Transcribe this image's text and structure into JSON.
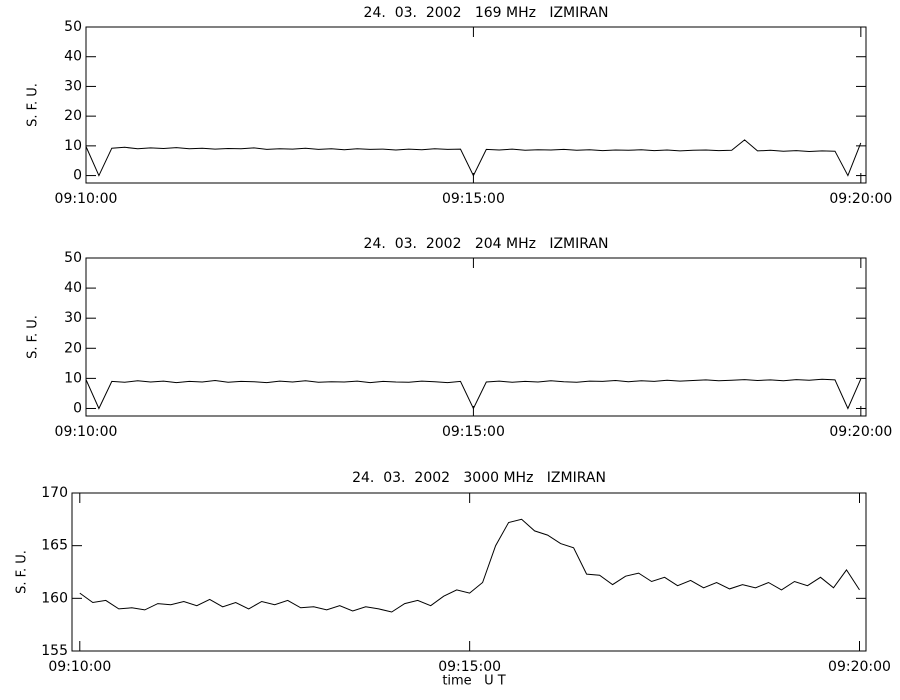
{
  "chart_data": [
    {
      "type": "line",
      "title": "24.  03.  2002   169 MHz   IZMIRAN",
      "ylabel": "S. F. U.",
      "color": "#000000",
      "x": [
        0,
        10,
        20,
        30,
        40,
        50,
        60,
        70,
        80,
        90,
        100,
        110,
        120,
        130,
        140,
        150,
        160,
        170,
        180,
        190,
        200,
        210,
        220,
        230,
        240,
        250,
        260,
        270,
        280,
        290,
        300,
        310,
        320,
        330,
        340,
        350,
        360,
        370,
        380,
        390,
        400,
        410,
        420,
        430,
        440,
        450,
        460,
        470,
        480,
        490,
        500,
        510,
        520,
        530,
        540,
        550,
        560,
        570,
        580,
        590,
        600
      ],
      "values": [
        9.8,
        0,
        9.2,
        9.5,
        9.0,
        9.3,
        9.1,
        9.4,
        9.0,
        9.2,
        8.9,
        9.1,
        9.0,
        9.3,
        8.8,
        9.0,
        8.9,
        9.2,
        8.8,
        9.0,
        8.7,
        9.0,
        8.8,
        8.9,
        8.6,
        8.9,
        8.7,
        9.0,
        8.8,
        8.9,
        0,
        8.8,
        8.6,
        8.9,
        8.5,
        8.7,
        8.6,
        8.8,
        8.5,
        8.7,
        8.4,
        8.6,
        8.5,
        8.7,
        8.4,
        8.6,
        8.3,
        8.5,
        8.6,
        8.4,
        8.5,
        12,
        8.3,
        8.5,
        8.2,
        8.4,
        8.1,
        8.3,
        8.2,
        0,
        11
      ],
      "xlim": [
        0,
        604
      ],
      "xticks": [
        {
          "value": 0,
          "label": "09:10:00"
        },
        {
          "value": 300,
          "label": "09:15:00"
        },
        {
          "value": 600,
          "label": "09:20:00"
        }
      ],
      "ylim": [
        -2.5,
        50
      ],
      "yticks": [
        0,
        10,
        20,
        30,
        40,
        50
      ]
    },
    {
      "type": "line",
      "title": "24.  03.  2002   204 MHz   IZMIRAN",
      "ylabel": "S. F. U.",
      "color": "#000000",
      "x": [
        0,
        10,
        20,
        30,
        40,
        50,
        60,
        70,
        80,
        90,
        100,
        110,
        120,
        130,
        140,
        150,
        160,
        170,
        180,
        190,
        200,
        210,
        220,
        230,
        240,
        250,
        260,
        270,
        280,
        290,
        300,
        310,
        320,
        330,
        340,
        350,
        360,
        370,
        380,
        390,
        400,
        410,
        420,
        430,
        440,
        450,
        460,
        470,
        480,
        490,
        500,
        510,
        520,
        530,
        540,
        550,
        560,
        570,
        580,
        590,
        600
      ],
      "values": [
        9.6,
        0,
        9.0,
        8.7,
        9.2,
        8.8,
        9.1,
        8.6,
        9.0,
        8.8,
        9.3,
        8.7,
        9.0,
        8.9,
        8.6,
        9.1,
        8.8,
        9.2,
        8.7,
        8.9,
        8.8,
        9.1,
        8.6,
        9.0,
        8.8,
        8.7,
        9.1,
        8.9,
        8.6,
        9.0,
        0,
        8.8,
        9.1,
        8.7,
        9.0,
        8.8,
        9.2,
        8.9,
        8.7,
        9.1,
        9.0,
        9.3,
        8.9,
        9.2,
        9.0,
        9.4,
        9.1,
        9.3,
        9.5,
        9.2,
        9.4,
        9.6,
        9.3,
        9.5,
        9.2,
        9.6,
        9.4,
        9.7,
        9.5,
        0,
        9.8
      ],
      "xlim": [
        0,
        604
      ],
      "xticks": [
        {
          "value": 0,
          "label": "09:10:00"
        },
        {
          "value": 300,
          "label": "09:15:00"
        },
        {
          "value": 600,
          "label": "09:20:00"
        }
      ],
      "ylim": [
        -2.5,
        50
      ],
      "yticks": [
        0,
        10,
        20,
        30,
        40,
        50
      ]
    },
    {
      "type": "line",
      "title": "24.  03.  2002   3000 MHz   IZMIRAN",
      "ylabel": "S. F. U.",
      "xlabel": "time   U T",
      "color": "#000000",
      "x": [
        0,
        10,
        20,
        30,
        40,
        50,
        60,
        70,
        80,
        90,
        100,
        110,
        120,
        130,
        140,
        150,
        160,
        170,
        180,
        190,
        200,
        210,
        220,
        230,
        240,
        250,
        260,
        270,
        280,
        290,
        300,
        310,
        320,
        330,
        340,
        350,
        360,
        370,
        380,
        390,
        400,
        410,
        420,
        430,
        440,
        450,
        460,
        470,
        480,
        490,
        500,
        510,
        520,
        530,
        540,
        550,
        560,
        570,
        580,
        590,
        600
      ],
      "values": [
        160.5,
        159.6,
        159.8,
        159.0,
        159.1,
        158.9,
        159.5,
        159.4,
        159.7,
        159.3,
        159.9,
        159.2,
        159.6,
        159.0,
        159.7,
        159.4,
        159.8,
        159.1,
        159.2,
        158.9,
        159.3,
        158.8,
        159.2,
        159.0,
        158.7,
        159.5,
        159.8,
        159.3,
        160.2,
        160.8,
        160.5,
        161.5,
        165.0,
        167.2,
        167.5,
        166.4,
        166.0,
        165.2,
        164.8,
        162.3,
        162.2,
        161.3,
        162.1,
        162.4,
        161.6,
        162.0,
        161.2,
        161.7,
        161.0,
        161.5,
        160.9,
        161.3,
        161.0,
        161.5,
        160.8,
        161.6,
        161.2,
        162.0,
        161.0,
        162.7,
        160.8
      ],
      "xlim": [
        -6,
        605
      ],
      "xticks": [
        {
          "value": 0,
          "label": "09:10:00"
        },
        {
          "value": 300,
          "label": "09:15:00"
        },
        {
          "value": 600,
          "label": "09:20:00"
        }
      ],
      "ylim": [
        155,
        170
      ],
      "yticks": [
        155,
        160,
        165,
        170
      ]
    }
  ]
}
